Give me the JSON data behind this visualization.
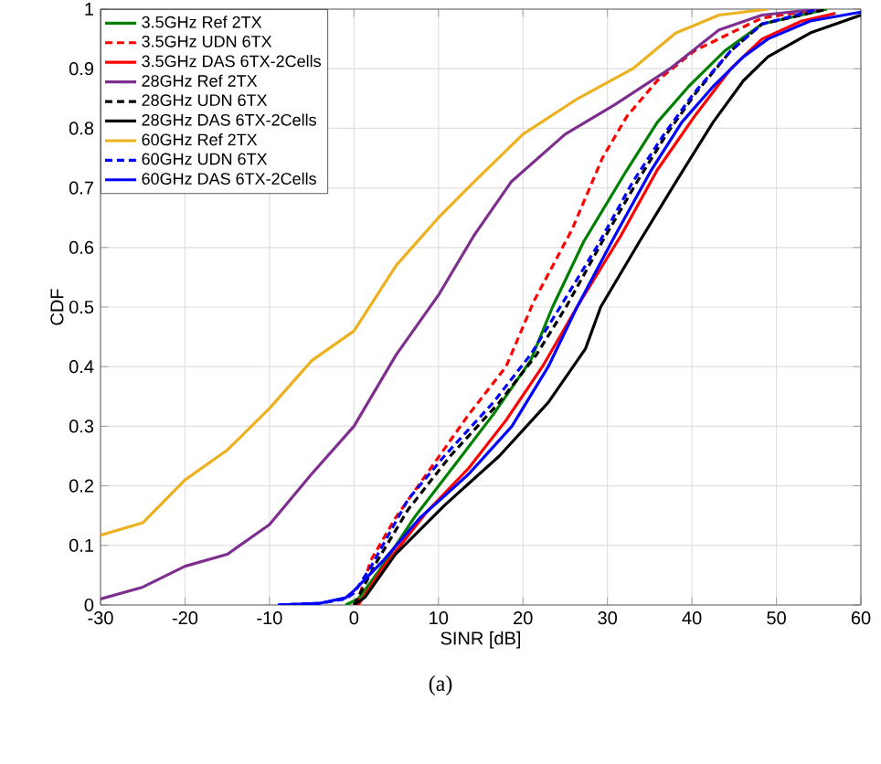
{
  "chart_data": {
    "type": "line",
    "xlabel": "SINR [dB]",
    "ylabel": "CDF",
    "annotations": [
      "(a)"
    ],
    "xlim": [
      -30,
      60
    ],
    "ylim": [
      0,
      1
    ],
    "xticks": [
      -30,
      -20,
      -10,
      0,
      10,
      20,
      30,
      40,
      50,
      60
    ],
    "yticks": [
      0,
      0.1,
      0.2,
      0.3,
      0.4,
      0.5,
      0.6,
      0.7,
      0.8,
      0.9,
      1
    ],
    "grid": true,
    "legend": "top left",
    "series": [
      {
        "name": "3.5GHz Ref 2TX",
        "color": "#008000",
        "line_style": "solid",
        "x": [
          -1,
          0.5,
          2.8,
          7.1,
          12.2,
          16.5,
          20.9,
          23.5,
          27.2,
          32.3,
          35.9,
          39.6,
          43.9,
          48.3,
          56
        ],
        "values": [
          0,
          0.01,
          0.054,
          0.146,
          0.24,
          0.32,
          0.41,
          0.5,
          0.61,
          0.73,
          0.81,
          0.87,
          0.93,
          0.975,
          1
        ]
      },
      {
        "name": "3.5GHz UDN 6TX",
        "color": "#ff0000",
        "line_style": "dashed",
        "x": [
          0.3,
          2,
          4.9,
          8.6,
          13.6,
          18,
          21.3,
          25.8,
          29.4,
          32.3,
          35.9,
          40.3,
          44.6,
          48.3,
          55
        ],
        "values": [
          0,
          0.075,
          0.146,
          0.22,
          0.32,
          0.4,
          0.51,
          0.63,
          0.75,
          0.82,
          0.88,
          0.93,
          0.96,
          0.985,
          1
        ]
      },
      {
        "name": "3.5GHz DAS 6TX-2Cells",
        "color": "#ff0000",
        "line_style": "solid",
        "x": [
          0.5,
          3.5,
          8.6,
          13.6,
          18,
          22.3,
          26.4,
          31.6,
          35.9,
          40.3,
          44.6,
          48.3,
          53,
          57
        ],
        "values": [
          0,
          0.064,
          0.156,
          0.23,
          0.31,
          0.4,
          0.5,
          0.62,
          0.73,
          0.82,
          0.9,
          0.95,
          0.98,
          0.993
        ]
      },
      {
        "name": "28GHz Ref 2TX",
        "color": "#7e2f8e",
        "line_style": "solid",
        "x": [
          -30,
          -25,
          -20,
          -15,
          -10,
          -5,
          0,
          5,
          10,
          14.2,
          18.6,
          25,
          30.9,
          37.4,
          43.2,
          48.3,
          55
        ],
        "values": [
          0.01,
          0.03,
          0.065,
          0.085,
          0.135,
          0.22,
          0.3,
          0.42,
          0.52,
          0.62,
          0.71,
          0.79,
          0.84,
          0.9,
          0.965,
          0.99,
          1
        ]
      },
      {
        "name": "28GHz UDN 6TX",
        "color": "#000000",
        "line_style": "dashed",
        "x": [
          0,
          2.8,
          6.4,
          11.4,
          17.2,
          21.6,
          25.1,
          29.4,
          33.5,
          37,
          40.5,
          44.6,
          48.3,
          56
        ],
        "values": [
          0,
          0.075,
          0.16,
          0.25,
          0.34,
          0.42,
          0.5,
          0.61,
          0.71,
          0.79,
          0.86,
          0.93,
          0.975,
          1
        ]
      },
      {
        "name": "28GHz DAS 6TX-2Cells",
        "color": "#000000",
        "line_style": "solid",
        "x": [
          0,
          1.3,
          4.9,
          10.7,
          17.2,
          23,
          27.4,
          29.2,
          33.8,
          38.1,
          42.5,
          46.1,
          49,
          54,
          60
        ],
        "values": [
          0,
          0.013,
          0.085,
          0.167,
          0.25,
          0.34,
          0.43,
          0.5,
          0.61,
          0.71,
          0.81,
          0.88,
          0.92,
          0.96,
          0.99
        ]
      },
      {
        "name": "60GHz Ref 2TX",
        "color": "#edb120",
        "line_style": "solid",
        "x": [
          -30,
          -25,
          -20,
          -15,
          -10,
          -5,
          0,
          5,
          10,
          14.2,
          20,
          26.5,
          33,
          38.1,
          43.2,
          49
        ],
        "values": [
          0.117,
          0.138,
          0.21,
          0.26,
          0.33,
          0.41,
          0.46,
          0.57,
          0.65,
          0.71,
          0.79,
          0.85,
          0.9,
          0.96,
          0.99,
          1
        ]
      },
      {
        "name": "60GHz UDN 6TX",
        "color": "#0000ff",
        "line_style": "dashed",
        "x": [
          -9,
          -4,
          -1,
          0,
          2,
          6.4,
          10.7,
          16.5,
          20.9,
          24.4,
          28.7,
          33,
          36.7,
          40.3,
          44.6,
          48.3,
          55
        ],
        "values": [
          0,
          0.003,
          0.01,
          0.02,
          0.064,
          0.177,
          0.25,
          0.34,
          0.42,
          0.5,
          0.6,
          0.71,
          0.79,
          0.86,
          0.93,
          0.975,
          1
        ]
      },
      {
        "name": "60GHz DAS 6TX-2Cells",
        "color": "#0000ff",
        "line_style": "solid",
        "x": [
          -9,
          -4,
          -1,
          0,
          3.5,
          7.8,
          13.6,
          18.7,
          23,
          26.4,
          30.9,
          35.2,
          38.8,
          42.5,
          46.1,
          49,
          54,
          60
        ],
        "values": [
          0,
          0.003,
          0.012,
          0.024,
          0.075,
          0.146,
          0.22,
          0.3,
          0.4,
          0.5,
          0.62,
          0.73,
          0.81,
          0.87,
          0.92,
          0.95,
          0.98,
          0.995
        ]
      }
    ]
  }
}
